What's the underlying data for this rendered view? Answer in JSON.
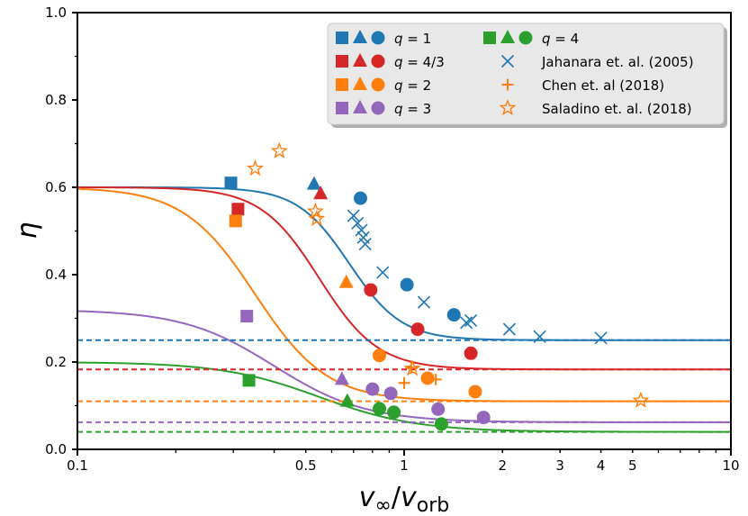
{
  "chart_data": {
    "type": "scatter",
    "xscale": "log",
    "xlim": [
      0.1,
      10
    ],
    "ylim": [
      0.0,
      1.0
    ],
    "xlabel": "v∞/vorb",
    "ylabel": "η",
    "xticks": [
      {
        "value": 0.1,
        "label": "0.1"
      },
      {
        "value": 0.5,
        "label": "0.5"
      },
      {
        "value": 1,
        "label": "1"
      },
      {
        "value": 2,
        "label": "2"
      },
      {
        "value": 3,
        "label": "3"
      },
      {
        "value": 4,
        "label": "4"
      },
      {
        "value": 5,
        "label": "5"
      },
      {
        "value": 10,
        "label": "10"
      }
    ],
    "yticks": [
      {
        "value": 0.0,
        "label": "0.0"
      },
      {
        "value": 0.2,
        "label": "0.2"
      },
      {
        "value": 0.4,
        "label": "0.4"
      },
      {
        "value": 0.6,
        "label": "0.6"
      },
      {
        "value": 0.8,
        "label": "0.8"
      },
      {
        "value": 1.0,
        "label": "1.0"
      }
    ],
    "colors": {
      "q1": "#1f77b4",
      "q43": "#d62728",
      "q2": "#ff7f0e",
      "q3": "#9467bd",
      "q4": "#2ca02c"
    },
    "series": [
      {
        "name": "q = 1",
        "key": "q1",
        "color": "#1f77b4",
        "fit": {
          "high": 0.6,
          "low": 0.25,
          "knee": 0.68,
          "width": 0.08
        },
        "asymptote": 0.25,
        "squares": [
          [
            0.295,
            0.61
          ]
        ],
        "triangles": [
          [
            0.53,
            0.607
          ]
        ],
        "circles": [
          [
            0.735,
            0.575
          ],
          [
            1.02,
            0.377
          ],
          [
            1.42,
            0.308
          ]
        ]
      },
      {
        "name": "q = 4/3",
        "key": "q43",
        "color": "#d62728",
        "fit": {
          "high": 0.6,
          "low": 0.183,
          "knee": 0.55,
          "width": 0.09
        },
        "asymptote": 0.183,
        "squares": [
          [
            0.31,
            0.55
          ]
        ],
        "triangles": [
          [
            0.555,
            0.585
          ]
        ],
        "circles": [
          [
            0.79,
            0.365
          ],
          [
            1.1,
            0.275
          ],
          [
            1.6,
            0.22
          ]
        ]
      },
      {
        "name": "q = 2",
        "key": "q2",
        "color": "#ff7f0e",
        "fit": {
          "high": 0.6,
          "low": 0.11,
          "knee": 0.35,
          "width": 0.11
        },
        "asymptote": 0.11,
        "squares": [
          [
            0.305,
            0.523
          ]
        ],
        "triangles": [
          [
            0.665,
            0.382
          ]
        ],
        "circles": [
          [
            0.84,
            0.215
          ],
          [
            1.18,
            0.163
          ],
          [
            1.65,
            0.132
          ]
        ]
      },
      {
        "name": "q = 3",
        "key": "q3",
        "color": "#9467bd",
        "fit": {
          "high": 0.32,
          "low": 0.062,
          "knee": 0.4,
          "width": 0.14
        },
        "asymptote": 0.062,
        "squares": [
          [
            0.33,
            0.305
          ]
        ],
        "triangles": [
          [
            0.645,
            0.16
          ]
        ],
        "circles": [
          [
            0.8,
            0.138
          ],
          [
            0.91,
            0.128
          ],
          [
            1.27,
            0.092
          ],
          [
            1.75,
            0.073
          ]
        ]
      },
      {
        "name": "q = 4",
        "key": "q4",
        "color": "#2ca02c",
        "fit": {
          "high": 0.2,
          "low": 0.04,
          "knee": 0.55,
          "width": 0.15
        },
        "asymptote": 0.04,
        "squares": [
          [
            0.335,
            0.158
          ]
        ],
        "triangles": [
          [
            0.67,
            0.11
          ]
        ],
        "circles": [
          [
            0.84,
            0.093
          ],
          [
            0.93,
            0.085
          ],
          [
            1.3,
            0.058
          ]
        ]
      }
    ],
    "references": [
      {
        "name": "Jahanara et. al. (2005)",
        "marker": "x",
        "color": "#1f77b4",
        "points": [
          [
            0.7,
            0.535
          ],
          [
            0.74,
            0.502
          ],
          [
            0.72,
            0.518
          ],
          [
            0.75,
            0.485
          ],
          [
            0.76,
            0.47
          ],
          [
            0.86,
            0.405
          ],
          [
            1.15,
            0.337
          ],
          [
            1.55,
            0.29
          ],
          [
            1.6,
            0.295
          ],
          [
            2.1,
            0.275
          ],
          [
            2.6,
            0.258
          ],
          [
            4.0,
            0.255
          ]
        ]
      },
      {
        "name": "Chen et. al (2018)",
        "marker": "plus",
        "color": "#ff7f0e",
        "points": [
          [
            1.0,
            0.152
          ],
          [
            1.05,
            0.187
          ],
          [
            1.25,
            0.16
          ]
        ]
      },
      {
        "name": "Saladino et. al. (2018)",
        "marker": "star",
        "color": "#ff7f0e",
        "points": [
          [
            0.35,
            0.643
          ],
          [
            0.415,
            0.683
          ],
          [
            0.535,
            0.545
          ],
          [
            0.54,
            0.528
          ],
          [
            1.06,
            0.185
          ],
          [
            5.3,
            0.112
          ]
        ]
      }
    ],
    "legend": {
      "position": "top-right",
      "entries_left": [
        {
          "key": "q1",
          "label": "q = 1"
        },
        {
          "key": "q43",
          "label": "q = 4/3"
        },
        {
          "key": "q2",
          "label": "q = 2"
        },
        {
          "key": "q3",
          "label": "q = 3"
        }
      ],
      "entries_right": [
        {
          "key": "q4",
          "label": "q = 4"
        },
        {
          "key": "jah",
          "label": "Jahanara et. al. (2005)"
        },
        {
          "key": "chen",
          "label": "Chen et. al (2018)"
        },
        {
          "key": "sal",
          "label": "Saladino et. al. (2018)"
        }
      ]
    }
  }
}
